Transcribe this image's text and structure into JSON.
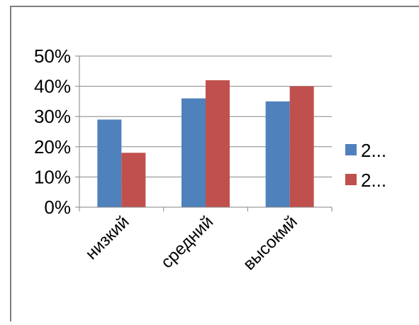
{
  "chart_data": {
    "type": "bar",
    "categories": [
      "низкий",
      "средний",
      "высокмй"
    ],
    "series": [
      {
        "name": "2...",
        "color": "#4F81BD",
        "values": [
          29,
          36,
          35
        ]
      },
      {
        "name": "2...",
        "color": "#C0504D",
        "values": [
          18,
          42,
          40
        ]
      }
    ],
    "ylim": [
      0,
      50
    ],
    "yticks": [
      "0%",
      "10%",
      "20%",
      "30%",
      "40%",
      "50%"
    ],
    "grid": true,
    "legend_position": "right"
  },
  "colors": {
    "gridline": "#868686",
    "axis": "#868686",
    "frame_border": "#7f7f7f"
  }
}
